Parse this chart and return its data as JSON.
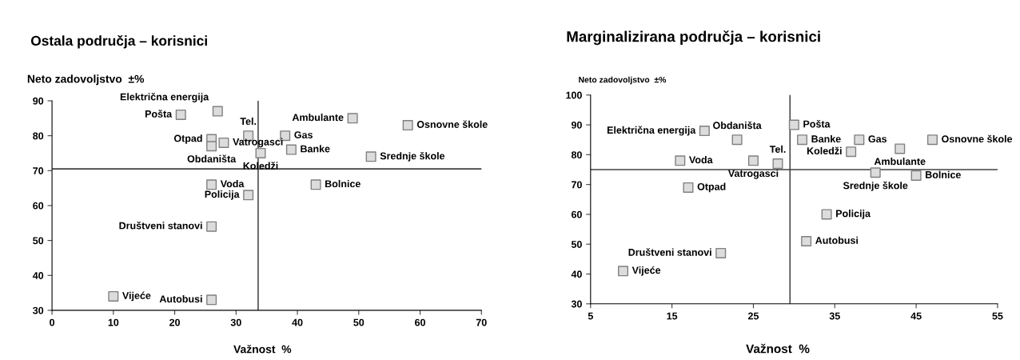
{
  "chart_data": [
    {
      "type": "scatter",
      "title": "Ostala područja – korisnici",
      "xlabel": "Važnost  %",
      "ylabel": "Neto zadovoljstvo  ±%",
      "xlim": [
        0,
        70
      ],
      "xticks": [
        0,
        10,
        20,
        30,
        40,
        50,
        60,
        70
      ],
      "ylim": [
        30,
        90
      ],
      "yticks": [
        30,
        40,
        50,
        60,
        70,
        80,
        90
      ],
      "grid": false,
      "marker": "square",
      "series": [
        {
          "color": "#dcdcdc",
          "x": [
            21,
            27,
            26,
            26,
            28,
            32,
            38,
            34,
            39,
            49,
            58,
            52,
            43,
            26,
            32,
            26,
            10,
            26
          ],
          "values": [
            86,
            87,
            79,
            77,
            78,
            80,
            80,
            75,
            76,
            85,
            83,
            74,
            66,
            66,
            63,
            54,
            34,
            33
          ]
        }
      ],
      "ref_lines": [
        {
          "axis": "x",
          "value": 33.6,
          "color": "#404040"
        },
        {
          "axis": "y",
          "value": 70.5,
          "color": "#404040"
        }
      ],
      "annotations": [
        {
          "text": "Pošta",
          "x": 21,
          "y": 86
        },
        {
          "text": "Električna energija",
          "x": 27,
          "y": 87
        },
        {
          "text": "Otpad",
          "x": 26,
          "y": 79
        },
        {
          "text": "Obdaništa",
          "x": 26,
          "y": 77
        },
        {
          "text": "Vatrogasci",
          "x": 28,
          "y": 78
        },
        {
          "text": "Tel.",
          "x": 32,
          "y": 80
        },
        {
          "text": "Gas",
          "x": 38,
          "y": 80
        },
        {
          "text": "Koledži",
          "x": 34,
          "y": 75
        },
        {
          "text": "Banke",
          "x": 39,
          "y": 76
        },
        {
          "text": "Ambulante",
          "x": 49,
          "y": 85
        },
        {
          "text": "Osnovne škole",
          "x": 58,
          "y": 83
        },
        {
          "text": "Srednje škole",
          "x": 52,
          "y": 74
        },
        {
          "text": "Bolnice",
          "x": 43,
          "y": 66
        },
        {
          "text": "Voda",
          "x": 26,
          "y": 66
        },
        {
          "text": "Policija",
          "x": 32,
          "y": 63
        },
        {
          "text": "Društveni stanovi",
          "x": 26,
          "y": 54
        },
        {
          "text": "Vijeće",
          "x": 10,
          "y": 34
        },
        {
          "text": "Autobusi",
          "x": 26,
          "y": 33
        }
      ]
    },
    {
      "type": "scatter",
      "title": "Marginalizirana područja – korisnici",
      "xlabel": "Važnost  %",
      "ylabel": "Neto zadovoljstvo  ±%",
      "xlim": [
        5,
        55
      ],
      "xticks": [
        5,
        15,
        25,
        35,
        45,
        55
      ],
      "ylim": [
        30,
        100
      ],
      "yticks": [
        30,
        40,
        50,
        60,
        70,
        80,
        90,
        100
      ],
      "grid": false,
      "marker": "square",
      "series": [
        {
          "color": "#dcdcdc",
          "x": [
            19,
            23,
            16,
            25,
            28,
            17,
            21,
            9,
            30,
            31,
            38,
            37,
            43,
            47,
            40,
            45,
            34,
            31.5
          ],
          "values": [
            88,
            85,
            78,
            78,
            77,
            69,
            47,
            41,
            90,
            85,
            85,
            81,
            82,
            85,
            74,
            73,
            60,
            51
          ]
        }
      ],
      "ref_lines": [
        {
          "axis": "x",
          "value": 29.5,
          "color": "#404040"
        },
        {
          "axis": "y",
          "value": 75,
          "color": "#404040"
        }
      ],
      "annotations": [
        {
          "text": "Električna energija",
          "x": 19,
          "y": 88
        },
        {
          "text": "Obdaništa",
          "x": 23,
          "y": 85
        },
        {
          "text": "Voda",
          "x": 16,
          "y": 78
        },
        {
          "text": "Vatrogasci",
          "x": 25,
          "y": 78
        },
        {
          "text": "Tel.",
          "x": 28,
          "y": 77
        },
        {
          "text": "Otpad",
          "x": 17,
          "y": 69
        },
        {
          "text": "Društveni stanovi",
          "x": 21,
          "y": 47
        },
        {
          "text": "Vijeće",
          "x": 9,
          "y": 41
        },
        {
          "text": "Pošta",
          "x": 30,
          "y": 90
        },
        {
          "text": "Banke",
          "x": 31,
          "y": 85
        },
        {
          "text": "Gas",
          "x": 38,
          "y": 85
        },
        {
          "text": "Koledži",
          "x": 37,
          "y": 81
        },
        {
          "text": "Ambulante",
          "x": 43,
          "y": 82
        },
        {
          "text": "Osnovne škole",
          "x": 47,
          "y": 85
        },
        {
          "text": "Srednje škole",
          "x": 40,
          "y": 74
        },
        {
          "text": "Bolnice",
          "x": 45,
          "y": 73
        },
        {
          "text": "Policija",
          "x": 34,
          "y": 60
        },
        {
          "text": "Autobusi",
          "x": 31.5,
          "y": 51
        }
      ]
    }
  ]
}
